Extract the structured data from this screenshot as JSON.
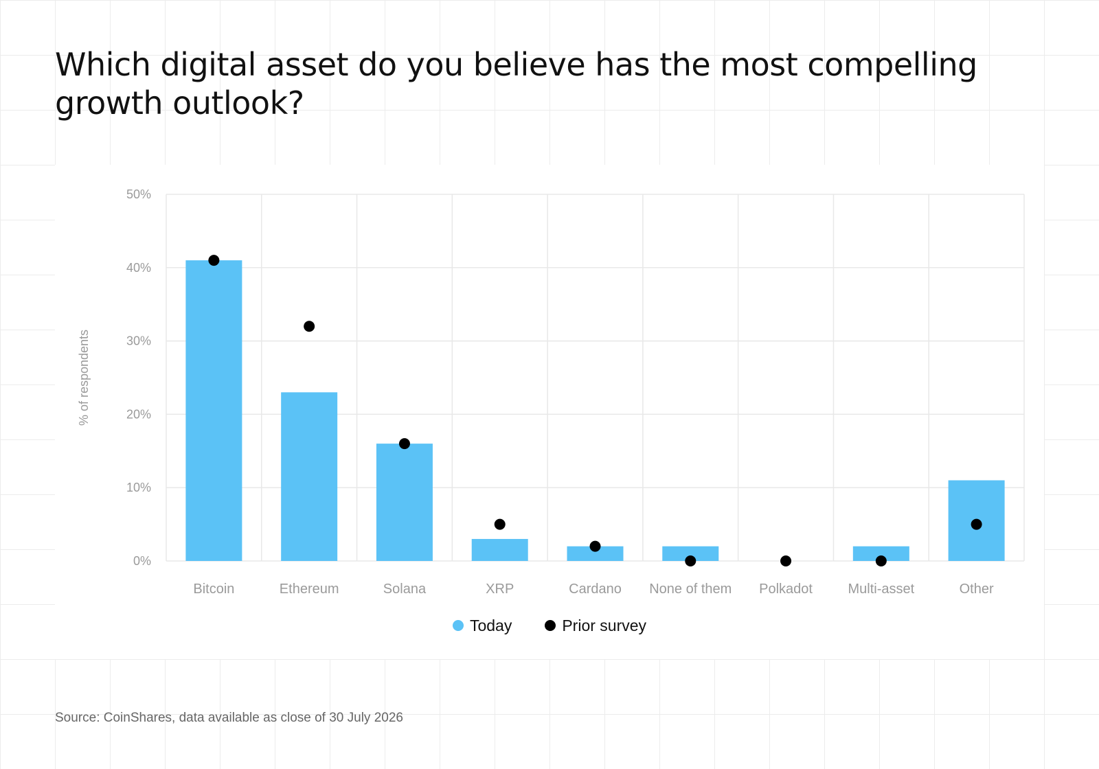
{
  "title": "Which digital asset do you believe has the most compelling growth outlook?",
  "source": "Source: CoinShares, data available as close of 30 July 2026",
  "colors": {
    "today": "#5bc2f6",
    "prior": "#000000"
  },
  "chart_data": {
    "type": "bar",
    "title": "Which digital asset do you believe has the most compelling growth outlook?",
    "xlabel": "",
    "ylabel": "% of respondents",
    "ylim": [
      0,
      50
    ],
    "yticks": [
      0,
      10,
      20,
      30,
      40,
      50
    ],
    "ytick_labels": [
      "0%",
      "10%",
      "20%",
      "30%",
      "40%",
      "50%"
    ],
    "grid": true,
    "legend_position": "bottom",
    "categories": [
      "Bitcoin",
      "Ethereum",
      "Solana",
      "XRP",
      "Cardano",
      "None of them",
      "Polkadot",
      "Multi-asset",
      "Other"
    ],
    "series": [
      {
        "name": "Today",
        "kind": "bar",
        "color": "#5bc2f6",
        "values": [
          41,
          23,
          16,
          3,
          2,
          2,
          0,
          2,
          11
        ]
      },
      {
        "name": "Prior survey",
        "kind": "dot",
        "color": "#000000",
        "values": [
          41,
          32,
          16,
          5,
          2,
          0,
          0,
          0,
          5
        ]
      }
    ]
  }
}
